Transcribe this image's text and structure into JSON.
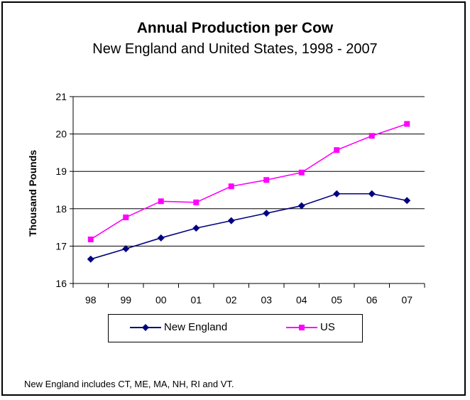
{
  "chart_data": {
    "type": "line",
    "title": "Annual Production per Cow",
    "subtitle": "New England and United States, 1998 - 2007",
    "ylabel": "Thousand Pounds",
    "xlabel": "",
    "categories": [
      "98",
      "99",
      "00",
      "01",
      "02",
      "03",
      "04",
      "05",
      "06",
      "07"
    ],
    "ylim": [
      16,
      21
    ],
    "yticks": [
      "16",
      "17",
      "18",
      "19",
      "20",
      "21"
    ],
    "grid": "horizontal",
    "legend_position": "bottom",
    "series": [
      {
        "name": "New England",
        "color": "#000080",
        "marker": "diamond",
        "values": [
          16.65,
          16.93,
          17.22,
          17.48,
          17.68,
          17.88,
          18.08,
          18.4,
          18.4,
          18.22
        ]
      },
      {
        "name": "US",
        "color": "#ff00ff",
        "marker": "square",
        "values": [
          17.18,
          17.77,
          18.2,
          18.17,
          18.6,
          18.77,
          18.97,
          19.57,
          19.95,
          20.27
        ]
      }
    ]
  },
  "footnote": "New England includes CT, ME, MA, NH, RI and VT."
}
